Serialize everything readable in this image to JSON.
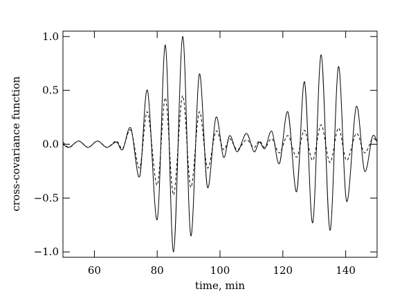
{
  "chart_data": {
    "type": "line",
    "xlabel": "time, min",
    "ylabel": "cross-covariance function",
    "x": [
      50,
      52,
      55,
      58,
      61,
      64,
      67,
      69,
      71.6,
      74.4,
      76.9,
      80,
      82.6,
      85.2,
      88.1,
      90.7,
      93.4,
      96,
      98.7,
      101.1,
      103.1,
      105.5,
      108.4,
      110.8,
      112.5,
      114.3,
      116.5,
      118.9,
      121.6,
      124.4,
      126.9,
      129.5,
      132.2,
      135,
      137.7,
      140.3,
      143.4,
      146,
      148.5,
      150
    ],
    "series": [
      {
        "color": "#000000",
        "dash": "solid",
        "values": [
          0,
          -0.03,
          0.03,
          -0.03,
          0.03,
          -0.03,
          0.02,
          -0.05,
          0.15,
          -0.3,
          0.5,
          -0.7,
          0.92,
          -1.0,
          1.0,
          -0.85,
          0.65,
          -0.4,
          0.25,
          -0.12,
          0.08,
          -0.07,
          0.1,
          -0.07,
          0.02,
          -0.04,
          0.12,
          -0.18,
          0.3,
          -0.44,
          0.58,
          -0.73,
          0.83,
          -0.8,
          0.72,
          -0.53,
          0.35,
          -0.25,
          0.07,
          0.02
        ]
      },
      {
        "color": "#000000",
        "dash": "dashed",
        "values": [
          0.02,
          -0.03,
          0.03,
          -0.03,
          0.03,
          -0.03,
          0.03,
          -0.04,
          0.13,
          -0.22,
          0.3,
          -0.38,
          0.43,
          -0.47,
          0.45,
          -0.4,
          0.3,
          -0.22,
          0.12,
          -0.05,
          0.05,
          -0.05,
          0.04,
          -0.03,
          0.03,
          -0.03,
          0.05,
          -0.08,
          0.08,
          -0.12,
          0.13,
          -0.15,
          0.18,
          -0.17,
          0.15,
          -0.15,
          0.1,
          -0.08,
          0.05,
          0.02
        ]
      }
    ],
    "xlim": [
      50,
      150
    ],
    "xticks": [
      60,
      80,
      100,
      120,
      140
    ],
    "ylim": [
      -1.05,
      1.05
    ],
    "yticks": [
      {
        "value": -1,
        "label": "−1.0"
      },
      {
        "value": -0.5,
        "label": "−0.5"
      },
      {
        "value": 0,
        "label": "0.0"
      },
      {
        "value": 0.5,
        "label": "0.5"
      },
      {
        "value": 1,
        "label": "1.0"
      }
    ],
    "grid": false
  }
}
